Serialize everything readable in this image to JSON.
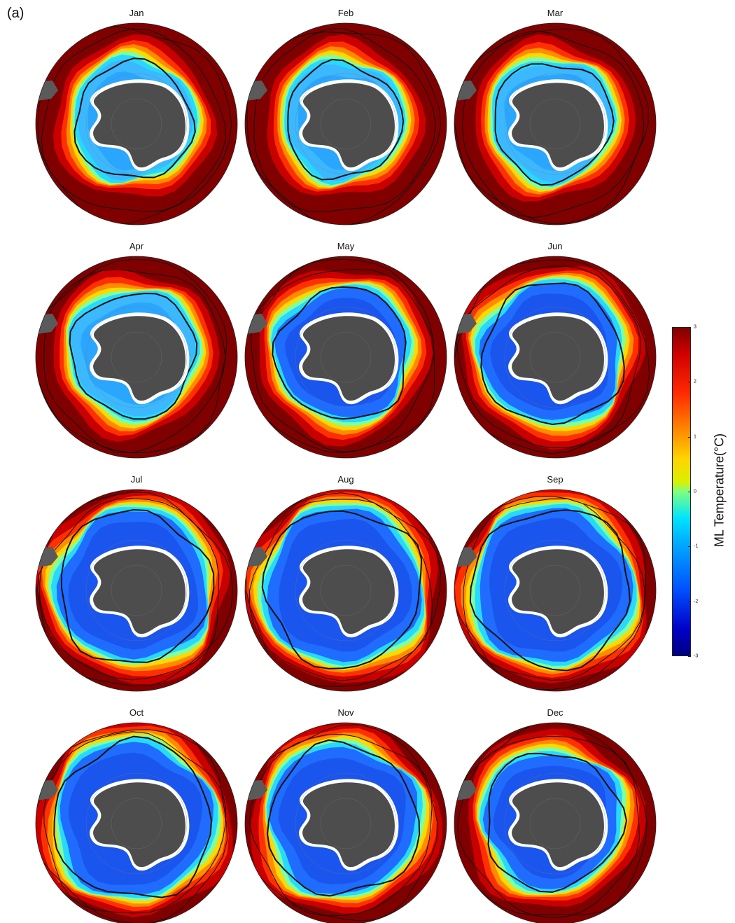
{
  "panel_label": "(a)",
  "months": [
    "Jan",
    "Feb",
    "Mar",
    "Apr",
    "May",
    "Jun",
    "Jul",
    "Aug",
    "Sep",
    "Oct",
    "Nov",
    "Dec"
  ],
  "ice_extent": [
    0.38,
    0.36,
    0.39,
    0.45,
    0.53,
    0.62,
    0.74,
    0.79,
    0.8,
    0.79,
    0.72,
    0.58
  ],
  "colorbar": {
    "label": "ML Temperature(°C)",
    "ticks": [
      "3",
      "2",
      "1",
      "0",
      "-1",
      "-2",
      "-3"
    ],
    "range": [
      -3,
      3
    ]
  },
  "colors": {
    "ocean_warm": "#800000",
    "antarctica": "#4d4d4d",
    "ice_shelf": "#ffffff",
    "contour": "#111111"
  }
}
